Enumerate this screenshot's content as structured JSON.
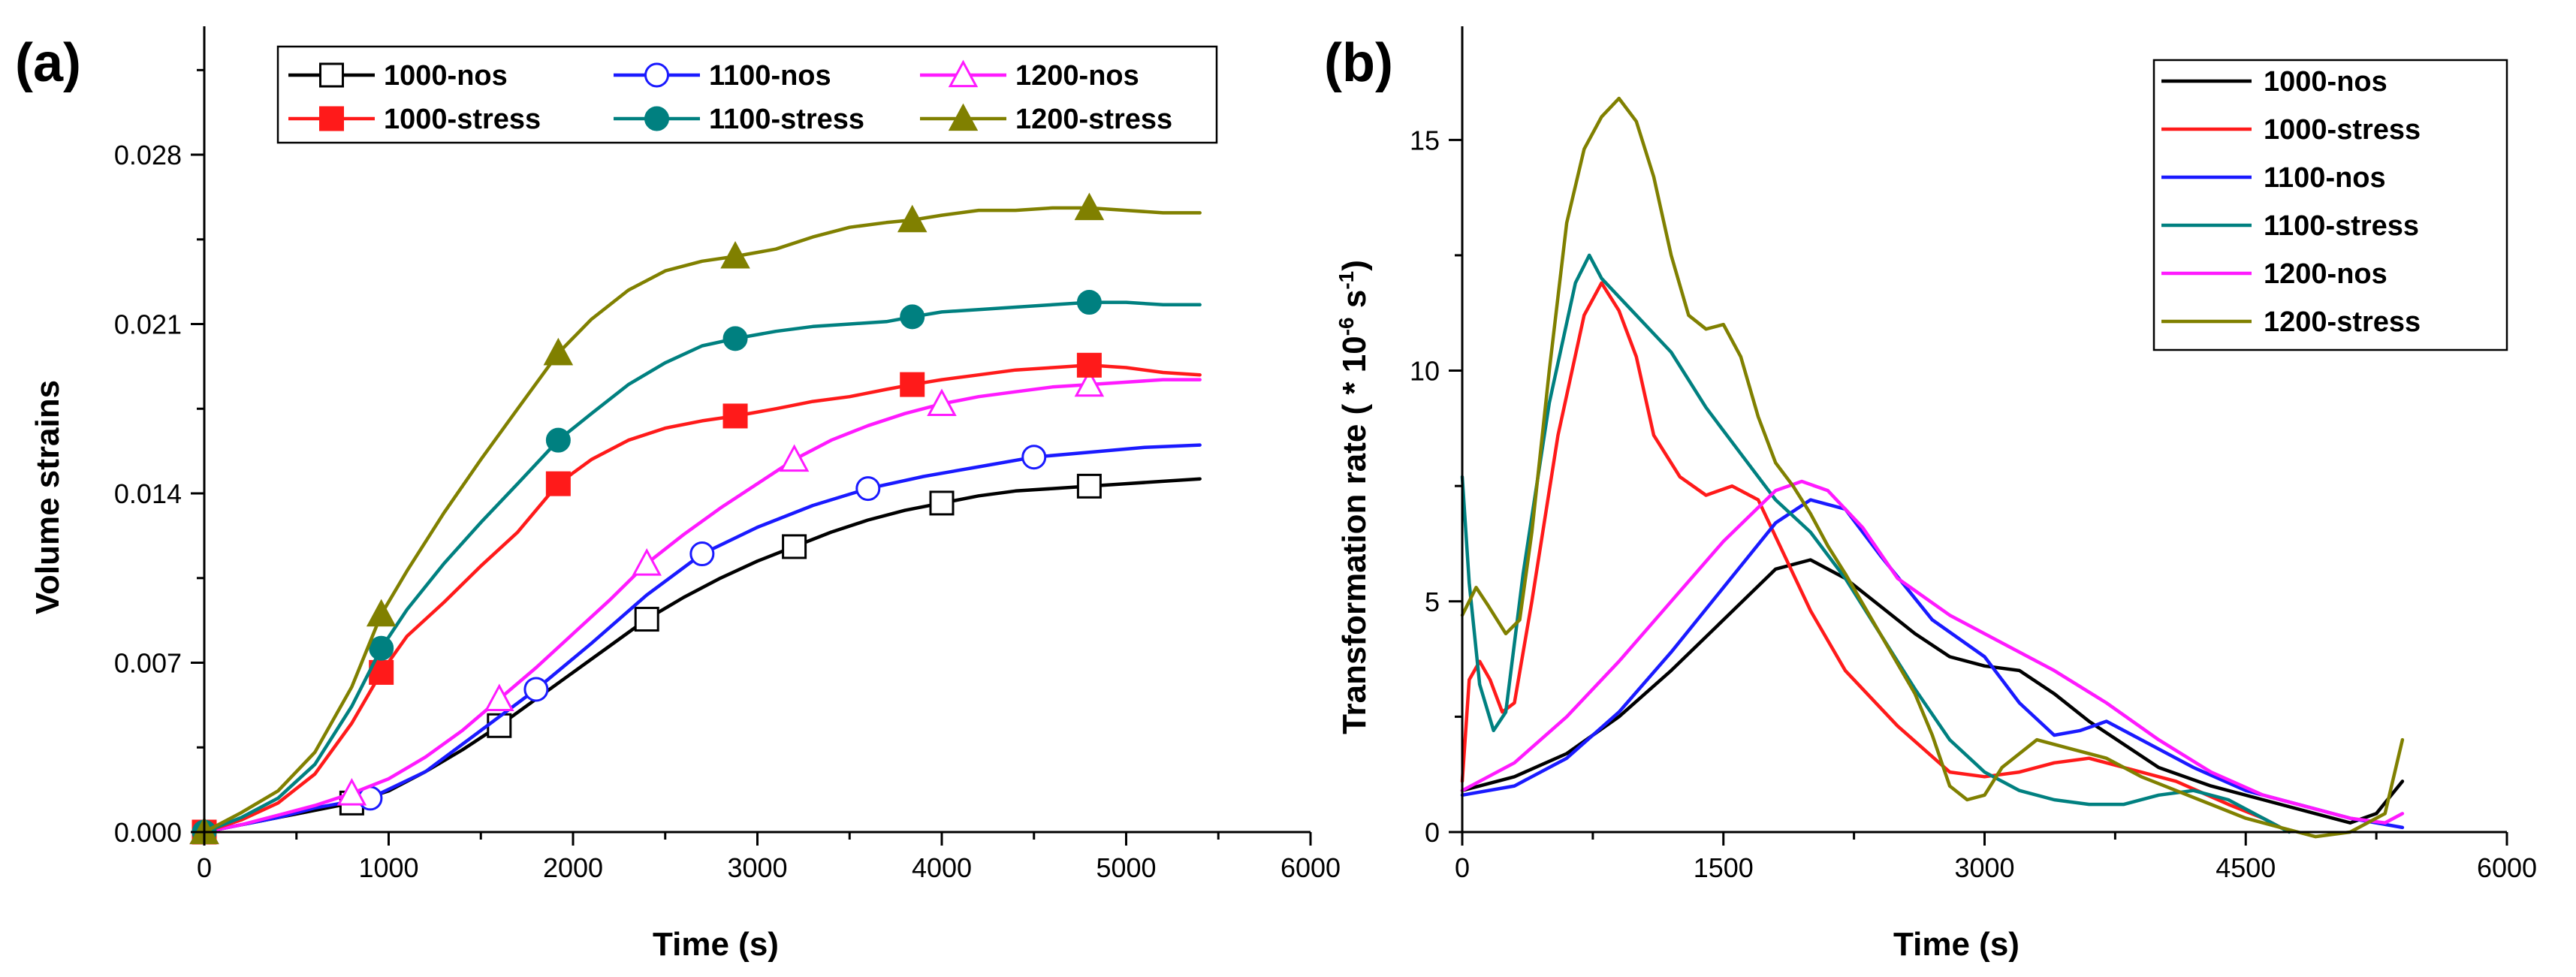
{
  "chart_data": [
    {
      "panel": "(a)",
      "type": "line",
      "title": "",
      "xlabel": "Time (s)",
      "ylabel": "Volume strains",
      "xlim": [
        0,
        6000
      ],
      "ylim": [
        0,
        0.033
      ],
      "xticks": [
        0,
        1000,
        2000,
        3000,
        4000,
        5000,
        6000
      ],
      "xtick_labels": [
        "0",
        "1000",
        "2000",
        "3000",
        "4000",
        "5000",
        "6000"
      ],
      "yticks": [
        0,
        0.007,
        0.014,
        0.021,
        0.028
      ],
      "ytick_labels": [
        "0.000",
        "0.007",
        "0.014",
        "0.021",
        "0.028"
      ],
      "legend_placement": "top",
      "series": [
        {
          "name": "1000-nos",
          "color": "#000000",
          "marker": "square-open",
          "x": [
            0,
            200,
            400,
            600,
            800,
            1000,
            1200,
            1400,
            1600,
            1800,
            2000,
            2200,
            2400,
            2600,
            2800,
            3000,
            3200,
            3400,
            3600,
            3800,
            4000,
            4200,
            4400,
            4600,
            4800,
            5000,
            5200,
            5400
          ],
          "y": [
            0,
            0.0003,
            0.0006,
            0.0009,
            0.0012,
            0.0017,
            0.0025,
            0.0034,
            0.0044,
            0.0055,
            0.0066,
            0.0077,
            0.0088,
            0.0097,
            0.0105,
            0.0112,
            0.0118,
            0.0124,
            0.0129,
            0.0133,
            0.0136,
            0.0139,
            0.0141,
            0.0142,
            0.0143,
            0.0144,
            0.0145,
            0.0146
          ],
          "markers_x": [
            0,
            800,
            1600,
            2400,
            3200,
            4000,
            4800
          ],
          "markers_y": [
            0,
            0.0012,
            0.0044,
            0.0088,
            0.0118,
            0.0136,
            0.0143
          ]
        },
        {
          "name": "1100-nos",
          "color": "#1a1aff",
          "marker": "circle-open",
          "x": [
            0,
            200,
            400,
            600,
            900,
            1200,
            1500,
            1800,
            2100,
            2400,
            2700,
            3000,
            3300,
            3600,
            3900,
            4200,
            4500,
            4800,
            5100,
            5400
          ],
          "y": [
            0,
            0.0003,
            0.0006,
            0.001,
            0.0014,
            0.0025,
            0.0042,
            0.0059,
            0.0078,
            0.0098,
            0.0115,
            0.0126,
            0.0135,
            0.0142,
            0.0147,
            0.0151,
            0.0155,
            0.0157,
            0.0159,
            0.016
          ],
          "markers_x": [
            0,
            900,
            1800,
            2700,
            3600,
            4500
          ],
          "markers_y": [
            0,
            0.0014,
            0.0059,
            0.0115,
            0.0142,
            0.0155
          ]
        },
        {
          "name": "1200-nos",
          "color": "#ff1aff",
          "marker": "triangle-open",
          "x": [
            0,
            200,
            400,
            600,
            800,
            1000,
            1200,
            1400,
            1600,
            1800,
            2000,
            2200,
            2400,
            2600,
            2800,
            3000,
            3200,
            3400,
            3600,
            3800,
            4000,
            4200,
            4400,
            4600,
            4800,
            5000,
            5200,
            5400
          ],
          "y": [
            0,
            0.0003,
            0.0007,
            0.0011,
            0.0016,
            0.0022,
            0.0031,
            0.0042,
            0.0055,
            0.0068,
            0.0082,
            0.0096,
            0.0111,
            0.0123,
            0.0134,
            0.0144,
            0.0154,
            0.0162,
            0.0168,
            0.0173,
            0.0177,
            0.018,
            0.0182,
            0.0184,
            0.0185,
            0.0186,
            0.0187,
            0.0187
          ],
          "markers_x": [
            0,
            800,
            1600,
            2400,
            3200,
            4000,
            4800
          ],
          "markers_y": [
            0,
            0.0016,
            0.0055,
            0.0111,
            0.0154,
            0.0177,
            0.0185
          ]
        },
        {
          "name": "1000-stress",
          "color": "#ff1a1a",
          "marker": "square-filled",
          "x": [
            0,
            200,
            400,
            600,
            800,
            960,
            1100,
            1300,
            1500,
            1700,
            1920,
            2100,
            2300,
            2500,
            2700,
            2880,
            3100,
            3300,
            3500,
            3700,
            3840,
            4000,
            4200,
            4400,
            4600,
            4800,
            5000,
            5200,
            5400
          ],
          "y": [
            0,
            0.0005,
            0.0012,
            0.0024,
            0.0045,
            0.0066,
            0.0081,
            0.0095,
            0.011,
            0.0124,
            0.0144,
            0.0154,
            0.0162,
            0.0167,
            0.017,
            0.0172,
            0.0175,
            0.0178,
            0.018,
            0.0183,
            0.0185,
            0.0187,
            0.0189,
            0.0191,
            0.0192,
            0.0193,
            0.0192,
            0.019,
            0.0189
          ],
          "markers_x": [
            0,
            960,
            1920,
            2880,
            3840,
            4800
          ],
          "markers_y": [
            0,
            0.0066,
            0.0144,
            0.0172,
            0.0185,
            0.0193
          ]
        },
        {
          "name": "1100-stress",
          "color": "#008080",
          "marker": "circle-filled",
          "x": [
            0,
            200,
            400,
            600,
            800,
            960,
            1100,
            1300,
            1500,
            1700,
            1920,
            2100,
            2300,
            2500,
            2700,
            2880,
            3100,
            3300,
            3500,
            3700,
            3840,
            4000,
            4200,
            4400,
            4600,
            4800,
            5000,
            5200,
            5400
          ],
          "y": [
            0,
            0.0006,
            0.0014,
            0.0028,
            0.0052,
            0.0076,
            0.0092,
            0.0111,
            0.0128,
            0.0144,
            0.0162,
            0.0173,
            0.0185,
            0.0194,
            0.0201,
            0.0204,
            0.0207,
            0.0209,
            0.021,
            0.0211,
            0.0213,
            0.0215,
            0.0216,
            0.0217,
            0.0218,
            0.0219,
            0.0219,
            0.0218,
            0.0218
          ],
          "markers_x": [
            0,
            960,
            1920,
            2880,
            3840,
            4800
          ],
          "markers_y": [
            0,
            0.0076,
            0.0162,
            0.0204,
            0.0213,
            0.0219
          ]
        },
        {
          "name": "1200-stress",
          "color": "#808000",
          "marker": "triangle-filled",
          "x": [
            0,
            200,
            400,
            600,
            800,
            960,
            1100,
            1300,
            1500,
            1700,
            1920,
            2100,
            2300,
            2500,
            2700,
            2880,
            3100,
            3300,
            3500,
            3700,
            3840,
            4000,
            4200,
            4400,
            4600,
            4800,
            5000,
            5200,
            5400
          ],
          "y": [
            0,
            0.0008,
            0.0017,
            0.0033,
            0.006,
            0.009,
            0.0108,
            0.0132,
            0.0154,
            0.0175,
            0.0198,
            0.0212,
            0.0224,
            0.0232,
            0.0236,
            0.0238,
            0.0241,
            0.0246,
            0.025,
            0.0252,
            0.0253,
            0.0255,
            0.0257,
            0.0257,
            0.0258,
            0.0258,
            0.0257,
            0.0256,
            0.0256
          ],
          "markers_x": [
            0,
            960,
            1920,
            2880,
            3840,
            4800
          ],
          "markers_y": [
            0,
            0.009,
            0.0198,
            0.0238,
            0.0253,
            0.0258
          ]
        }
      ]
    },
    {
      "panel": "(b)",
      "type": "line",
      "title": "",
      "xlabel": "Time (s)",
      "ylabel_prefix": "Transformation rate ( * 10",
      "ylabel_exp1": "-6",
      "ylabel_mid": " s",
      "ylabel_exp2": "-1",
      "ylabel_suffix": ")",
      "xlim": [
        0,
        6000
      ],
      "ylim": [
        0,
        17.3
      ],
      "xticks": [
        0,
        1500,
        3000,
        4500,
        6000
      ],
      "xtick_labels": [
        "0",
        "1500",
        "3000",
        "4500",
        "6000"
      ],
      "yticks": [
        0,
        5,
        10,
        15
      ],
      "ytick_labels": [
        "0",
        "5",
        "10",
        "15"
      ],
      "legend_placement": "top-right",
      "series": [
        {
          "name": "1000-nos",
          "color": "#000000",
          "x": [
            0,
            300,
            600,
            900,
            1200,
            1500,
            1800,
            2000,
            2200,
            2400,
            2600,
            2800,
            3000,
            3200,
            3400,
            3600,
            3800,
            4000,
            4300,
            4600,
            4900,
            5100,
            5250,
            5400
          ],
          "y": [
            0.9,
            1.2,
            1.7,
            2.5,
            3.5,
            4.6,
            5.7,
            5.9,
            5.5,
            4.9,
            4.3,
            3.8,
            3.6,
            3.5,
            3.0,
            2.4,
            1.9,
            1.4,
            1.0,
            0.7,
            0.4,
            0.2,
            0.4,
            1.1
          ]
        },
        {
          "name": "1000-stress",
          "color": "#ff1a1a",
          "x": [
            0,
            40,
            100,
            160,
            230,
            300,
            400,
            550,
            700,
            800,
            900,
            1000,
            1100,
            1250,
            1400,
            1550,
            1700,
            1850,
            2000,
            2200,
            2500,
            2800,
            3000,
            3200,
            3400,
            3600,
            3800,
            4100,
            4400,
            4600,
            4700
          ],
          "y": [
            1.1,
            3.3,
            3.7,
            3.3,
            2.6,
            2.8,
            5.0,
            8.6,
            11.2,
            11.9,
            11.3,
            10.3,
            8.6,
            7.7,
            7.3,
            7.5,
            7.2,
            6.0,
            4.8,
            3.5,
            2.3,
            1.3,
            1.2,
            1.3,
            1.5,
            1.6,
            1.4,
            1.1,
            0.6,
            0.3,
            0.1
          ]
        },
        {
          "name": "1100-nos",
          "color": "#1a1aff",
          "x": [
            0,
            300,
            600,
            900,
            1200,
            1500,
            1800,
            2000,
            2200,
            2400,
            2700,
            3000,
            3200,
            3400,
            3550,
            3700,
            3900,
            4200,
            4500,
            4800,
            5100,
            5400
          ],
          "y": [
            0.8,
            1.0,
            1.6,
            2.6,
            3.9,
            5.3,
            6.7,
            7.2,
            7.0,
            6.0,
            4.6,
            3.8,
            2.8,
            2.1,
            2.2,
            2.4,
            2.0,
            1.4,
            0.9,
            0.6,
            0.3,
            0.1
          ]
        },
        {
          "name": "1100-stress",
          "color": "#008080",
          "x": [
            0,
            40,
            100,
            180,
            250,
            350,
            500,
            650,
            730,
            800,
            1000,
            1200,
            1400,
            1600,
            1800,
            2000,
            2200,
            2400,
            2600,
            2800,
            3000,
            3200,
            3400,
            3600,
            3800,
            4000,
            4200,
            4400,
            4600,
            4750
          ],
          "y": [
            7.7,
            5.4,
            3.2,
            2.2,
            2.6,
            5.6,
            9.3,
            11.9,
            12.5,
            12.0,
            11.2,
            10.4,
            9.2,
            8.2,
            7.2,
            6.5,
            5.5,
            4.3,
            3.1,
            2.0,
            1.3,
            0.9,
            0.7,
            0.6,
            0.6,
            0.8,
            0.9,
            0.7,
            0.3,
            0.0
          ]
        },
        {
          "name": "1200-nos",
          "color": "#ff1aff",
          "x": [
            0,
            300,
            600,
            900,
            1200,
            1500,
            1800,
            1950,
            2100,
            2300,
            2500,
            2800,
            3100,
            3400,
            3700,
            4000,
            4300,
            4600,
            4900,
            5100,
            5300,
            5400
          ],
          "y": [
            0.9,
            1.5,
            2.5,
            3.7,
            5.0,
            6.3,
            7.4,
            7.6,
            7.4,
            6.6,
            5.5,
            4.7,
            4.1,
            3.5,
            2.8,
            2.0,
            1.3,
            0.8,
            0.5,
            0.3,
            0.2,
            0.4
          ]
        },
        {
          "name": "1200-stress",
          "color": "#808000",
          "x": [
            0,
            80,
            150,
            250,
            330,
            400,
            500,
            600,
            700,
            800,
            900,
            1000,
            1100,
            1200,
            1300,
            1400,
            1500,
            1600,
            1700,
            1800,
            1900,
            2000,
            2100,
            2200,
            2400,
            2600,
            2700,
            2800,
            2900,
            3000,
            3100,
            3300,
            3500,
            3700,
            3900,
            4100,
            4300,
            4500,
            4700,
            4900,
            5100,
            5300,
            5400
          ],
          "y": [
            4.7,
            5.3,
            4.9,
            4.3,
            4.6,
            6.5,
            10.0,
            13.2,
            14.8,
            15.5,
            15.9,
            15.4,
            14.2,
            12.5,
            11.2,
            10.9,
            11.0,
            10.3,
            9.0,
            8.0,
            7.5,
            6.9,
            6.2,
            5.6,
            4.3,
            3.0,
            2.1,
            1.0,
            0.7,
            0.8,
            1.4,
            2.0,
            1.8,
            1.6,
            1.2,
            0.9,
            0.6,
            0.3,
            0.1,
            -0.1,
            0.0,
            0.4,
            2.0
          ]
        }
      ]
    }
  ]
}
